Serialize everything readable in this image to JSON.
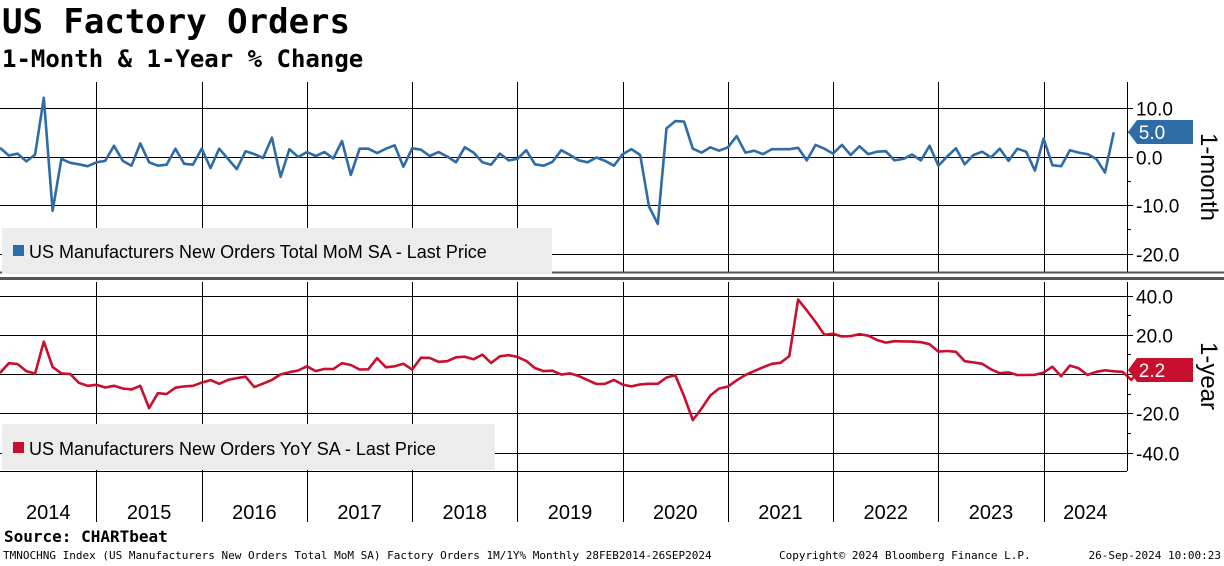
{
  "header": {
    "title": "US Factory Orders",
    "subtitle": "1-Month & 1-Year % Change"
  },
  "source": "Source: CHARTbeat",
  "footer": {
    "ticker": "TMNOCHNG Index (US Manufacturers New Orders Total MoM SA) Factory Orders 1M/1Y% Monthly 28FEB2014-26SEP2024",
    "copyright": "Copyright© 2024 Bloomberg Finance L.P.",
    "timestamp": "26-Sep-2024 10:00:23"
  },
  "colors": {
    "mom": "#2e6ca8",
    "yoy": "#c8102e",
    "grid": "#000000",
    "legend_bg": "#ececec",
    "divider": "#555555"
  },
  "chart_data": [
    {
      "type": "line",
      "title": "1-month",
      "ylabel": "1-month",
      "ylim": [
        -23,
        14
      ],
      "yticks": [
        10,
        0,
        -10,
        -20
      ],
      "ytick_labels": [
        "10.0",
        "0.0",
        "-10.0",
        "-20.0"
      ],
      "legend": "US Manufacturers New Orders Total MoM SA - Last Price",
      "last_value": 5.0,
      "last_value_label": "5.0",
      "x_start": "2014-02",
      "series": [
        {
          "name": "US Manufacturers New Orders Total MoM SA - Last Price",
          "values": [
            1.8,
            0.2,
            0.6,
            -1.0,
            0.4,
            12.1,
            -11.2,
            -0.5,
            -1.3,
            -1.6,
            -2.0,
            -1.2,
            -0.9,
            2.2,
            -0.9,
            -1.9,
            2.7,
            -1.2,
            -1.9,
            -1.7,
            1.6,
            -1.5,
            -1.7,
            1.6,
            -2.4,
            1.6,
            -0.5,
            -2.6,
            1.1,
            0.5,
            -0.3,
            3.9,
            -4.2,
            1.5,
            -0.1,
            0.9,
            0.1,
            0.9,
            -0.4,
            3.2,
            -3.8,
            1.6,
            1.6,
            0.7,
            1.6,
            2.3,
            -2.1,
            1.7,
            1.4,
            0.1,
            0.9,
            0.0,
            -1.2,
            1.9,
            0.8,
            -1.2,
            -1.7,
            0.6,
            -0.8,
            -0.5,
            1.3,
            -1.6,
            -1.9,
            -1.1,
            1.3,
            0.3,
            -0.8,
            -1.2,
            -0.2,
            -0.9,
            -1.9,
            0.5,
            1.5,
            0.3,
            -10.3,
            -13.9,
            5.8,
            7.3,
            7.2,
            1.6,
            0.8,
            1.9,
            1.2,
            1.9,
            4.2,
            0.8,
            1.2,
            0.5,
            1.5,
            1.5,
            1.5,
            1.8,
            -0.8,
            2.4,
            1.6,
            0.6,
            2.4,
            0.3,
            2.1,
            0.5,
            1.0,
            1.1,
            -0.8,
            -0.5,
            0.4,
            -0.8,
            2.2,
            -1.9,
            0.0,
            1.7,
            -1.6,
            0.3,
            1.0,
            -0.2,
            1.6,
            -0.9,
            1.6,
            1.0,
            -2.9,
            3.7,
            -1.8,
            -2.0,
            1.3,
            0.8,
            0.5,
            -0.5,
            -3.3,
            5.0
          ]
        }
      ]
    },
    {
      "type": "line",
      "title": "1-year",
      "ylabel": "1-year",
      "ylim": [
        -48,
        44
      ],
      "yticks": [
        40,
        20,
        0,
        -20,
        -40
      ],
      "ytick_labels": [
        "40.0",
        "20.0",
        "0.0",
        "-20.0",
        "-40.0"
      ],
      "legend": "US Manufacturers New Orders YoY SA - Last Price",
      "last_value": 2.2,
      "last_value_label": "2.2",
      "x_start": "2014-02",
      "series": [
        {
          "name": "US Manufacturers New Orders YoY SA - Last Price",
          "values": [
            0.5,
            5.5,
            5.1,
            1.5,
            0.2,
            16.5,
            3.6,
            0.3,
            0.0,
            -4.5,
            -6.0,
            -5.5,
            -6.9,
            -6.0,
            -7.4,
            -7.9,
            -6.0,
            -17.4,
            -9.8,
            -10.2,
            -7.0,
            -6.3,
            -6.0,
            -4.4,
            -3.1,
            -5.0,
            -3.0,
            -2.1,
            -1.4,
            -6.7,
            -4.9,
            -3.0,
            -0.2,
            0.9,
            1.8,
            3.9,
            1.5,
            2.6,
            2.5,
            5.5,
            4.6,
            2.3,
            2.4,
            8.1,
            3.4,
            3.9,
            5.2,
            2.3,
            8.3,
            8.2,
            6.2,
            6.5,
            8.5,
            8.8,
            7.5,
            9.9,
            5.6,
            9.0,
            9.6,
            8.7,
            6.7,
            3.0,
            1.5,
            1.7,
            -0.3,
            0.3,
            -1.0,
            -3.1,
            -5.1,
            -5.0,
            -3.0,
            -5.4,
            -6.3,
            -5.3,
            -5.0,
            -5.0,
            -1.8,
            -0.6,
            -11.3,
            -23.5,
            -17.6,
            -10.9,
            -7.4,
            -6.4,
            -3.2,
            -0.5,
            1.5,
            3.4,
            5.2,
            5.7,
            9.1,
            37.9,
            32.4,
            26.5,
            20.0,
            20.5,
            19.1,
            19.3,
            20.3,
            19.5,
            17.3,
            16.0,
            16.7,
            16.6,
            16.5,
            16.2,
            15.2,
            11.4,
            11.7,
            11.3,
            6.5,
            5.9,
            5.2,
            2.4,
            0.4,
            0.8,
            -0.5,
            -0.5,
            -0.4,
            0.7,
            3.7,
            -1.1,
            4.3,
            2.9,
            -0.5,
            1.1,
            1.9,
            1.4,
            1.1,
            -3.0,
            2.2
          ]
        }
      ]
    },
    {
      "type": "axis",
      "x_axis_labels": [
        "2014",
        "2015",
        "2016",
        "2017",
        "2018",
        "2019",
        "2020",
        "2021",
        "2022",
        "2023",
        "2024"
      ]
    }
  ]
}
